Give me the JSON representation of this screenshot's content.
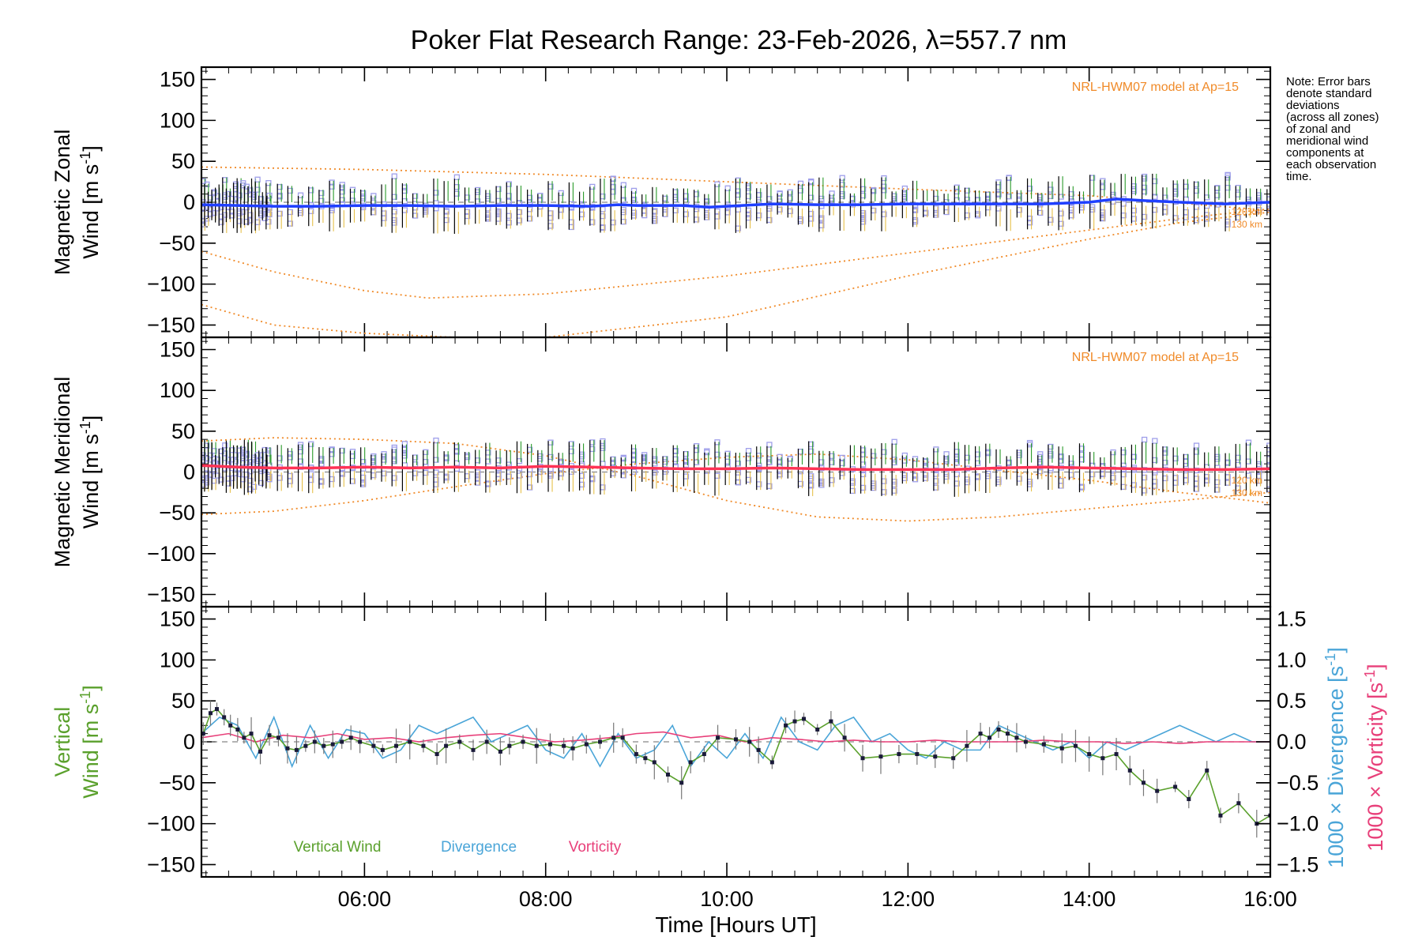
{
  "title": "Poker Flat Research Range: 23-Feb-2026, λ=557.7 nm",
  "note": [
    "Note: Error bars",
    "denote standard",
    "deviations",
    "(across all zones)",
    "of zonal and",
    "meridional wind",
    "components at",
    "each observation",
    "time."
  ],
  "colors": {
    "zonal_mean": "#1f3fff",
    "meridional_mean": "#ff3355",
    "model": "#f08a28",
    "zone_points": "#9f9fea",
    "errbar": "#000000",
    "green_bar": "#2a9a2a",
    "vertical": "#5aa02c",
    "divergence": "#4aa5d8",
    "vorticity": "#e8407a"
  },
  "chart_data": [
    {
      "type": "line",
      "panel": "zonal",
      "ylabel": [
        "Magnetic Zonal",
        "Wind [m s⁻¹]"
      ],
      "ylabel_lines": [
        "Magnetic Zonal",
        "Wind",
        "[m s",
        "-1",
        "]"
      ],
      "ylim": [
        -165,
        165
      ],
      "xlim": [
        4.2,
        16.0
      ],
      "yticks": [
        150,
        100,
        50,
        0,
        -50,
        -100,
        -150
      ],
      "ytick_labels": [
        "150",
        "100",
        "50",
        "0",
        "−50",
        "−100",
        "−150"
      ],
      "model_label": "NRL-HWM07 model at Ap=15",
      "model_alt_labels": [
        "120 km",
        "130 km"
      ],
      "series": [
        {
          "name": "mean zonal wind",
          "x": [
            4.2,
            4.6,
            5.0,
            5.5,
            6.0,
            6.5,
            7.0,
            7.5,
            8.0,
            8.5,
            8.8,
            9.0,
            9.5,
            9.8,
            10.0,
            10.5,
            11.0,
            11.5,
            12.0,
            12.5,
            13.0,
            13.5,
            14.0,
            14.3,
            14.6,
            15.0,
            15.5,
            16.0
          ],
          "values": [
            -3,
            -4,
            -5,
            -5,
            -4,
            -4,
            -5,
            -4,
            -4,
            -5,
            -3,
            -4,
            -4,
            -6,
            -5,
            -2,
            -3,
            -3,
            -2,
            -2,
            -2,
            -2,
            0,
            4,
            2,
            0,
            -2,
            0
          ]
        },
        {
          "name": "HWM07 120 km upper",
          "x": [
            4.2,
            6,
            8,
            10,
            12,
            14,
            15,
            16
          ],
          "values": [
            43,
            40,
            34,
            25,
            16,
            8,
            -1,
            -10
          ]
        },
        {
          "name": "HWM07 130 km",
          "x": [
            4.2,
            5,
            6,
            6.7,
            8,
            10,
            12,
            14,
            15,
            16
          ],
          "values": [
            -60,
            -85,
            -108,
            -117,
            -112,
            -90,
            -62,
            -34,
            -20,
            -8
          ]
        },
        {
          "name": "HWM07 120 km lower",
          "x": [
            4.2,
            5,
            6,
            7,
            8,
            10,
            12,
            14,
            15,
            16
          ],
          "values": [
            -125,
            -150,
            -160,
            -165,
            -165,
            -140,
            -90,
            -45,
            -25,
            -12
          ]
        }
      ]
    },
    {
      "type": "line",
      "panel": "meridional",
      "ylabel": [
        "Magnetic Meridional",
        "Wind [m s⁻¹]"
      ],
      "ylabel_lines": [
        "Magnetic Meridional",
        "Wind",
        "[m s",
        "-1",
        "]"
      ],
      "ylim": [
        -165,
        165
      ],
      "xlim": [
        4.2,
        16.0
      ],
      "yticks": [
        150,
        100,
        50,
        0,
        -50,
        -100,
        -150
      ],
      "ytick_labels": [
        "150",
        "100",
        "50",
        "0",
        "−50",
        "−100",
        "−150"
      ],
      "model_label": "NRL-HWM07 model at Ap=15",
      "model_alt_labels": [
        "120 km",
        "130 km"
      ],
      "series": [
        {
          "name": "mean meridional wind",
          "x": [
            4.2,
            4.6,
            5.0,
            5.5,
            6.0,
            6.5,
            7.0,
            7.5,
            8.0,
            8.5,
            9.0,
            9.5,
            10.0,
            10.5,
            11.0,
            11.5,
            12.0,
            12.5,
            13.0,
            13.5,
            14.0,
            14.5,
            15.0,
            15.5,
            16.0
          ],
          "values": [
            8,
            6,
            5,
            5,
            6,
            5,
            6,
            5,
            7,
            6,
            5,
            4,
            4,
            5,
            4,
            3,
            3,
            3,
            5,
            6,
            5,
            4,
            3,
            3,
            4
          ]
        },
        {
          "name": "HWM07 130 km",
          "x": [
            4.2,
            5,
            6,
            7,
            8,
            9,
            10,
            11,
            12,
            13,
            14,
            15,
            16
          ],
          "values": [
            -52,
            -48,
            -35,
            -18,
            -2,
            10,
            18,
            22,
            15,
            2,
            -10,
            -25,
            -38
          ]
        },
        {
          "name": "HWM07 120 km",
          "x": [
            4.2,
            5,
            6,
            7,
            8,
            9,
            10,
            11,
            12,
            13,
            14,
            15,
            16
          ],
          "values": [
            38,
            42,
            40,
            35,
            20,
            -5,
            -35,
            -55,
            -60,
            -55,
            -45,
            -35,
            -25
          ]
        }
      ]
    },
    {
      "type": "line",
      "panel": "vertical",
      "ylabel": [
        "Vertical",
        "Wind [m s⁻¹]"
      ],
      "ylabel_lines": [
        "Vertical",
        "Wind",
        "[m s",
        "-1",
        "]"
      ],
      "ylabel_right1": "1000 × Divergence [s⁻¹]",
      "ylabel_right1_parts": [
        "1000 × Divergence",
        "[s",
        "-1",
        "]"
      ],
      "ylabel_right2": "1000 × Vorticity [s⁻¹]",
      "ylabel_right2_parts": [
        "1000 × Vorticity",
        "[s",
        "-1",
        "]"
      ],
      "ylim": [
        -165,
        165
      ],
      "ylim_right": [
        -1.65,
        1.65
      ],
      "xlim": [
        4.2,
        16.0
      ],
      "yticks": [
        150,
        100,
        50,
        0,
        -50,
        -100,
        -150
      ],
      "ytick_labels": [
        "150",
        "100",
        "50",
        "0",
        "−50",
        "−100",
        "−150"
      ],
      "yticks_right": [
        1.5,
        1.0,
        0.5,
        0.0,
        -0.5,
        -1.0,
        -1.5
      ],
      "ytick_right_labels": [
        "1.5",
        "1.0",
        "0.5",
        "0.0",
        "−0.5",
        "−1.0",
        "−1.5"
      ],
      "xlabel": "Time [Hours UT]",
      "xticks": [
        6,
        8,
        10,
        12,
        14,
        16
      ],
      "xtick_labels": [
        "06:00",
        "08:00",
        "10:00",
        "12:00",
        "14:00",
        "16:00"
      ],
      "legend": [
        "Vertical Wind",
        "Divergence",
        "Vorticity"
      ],
      "series": [
        {
          "name": "Vertical Wind",
          "x": [
            4.22,
            4.3,
            4.37,
            4.45,
            4.52,
            4.6,
            4.67,
            4.75,
            4.85,
            4.95,
            5.05,
            5.15,
            5.25,
            5.35,
            5.45,
            5.55,
            5.65,
            5.75,
            5.85,
            5.95,
            6.1,
            6.2,
            6.35,
            6.5,
            6.65,
            6.8,
            6.9,
            7.05,
            7.2,
            7.35,
            7.5,
            7.6,
            7.75,
            7.9,
            8.05,
            8.2,
            8.3,
            8.45,
            8.6,
            8.75,
            8.85,
            9.0,
            9.1,
            9.2,
            9.35,
            9.5,
            9.6,
            9.75,
            9.9,
            10.1,
            10.25,
            10.35,
            10.5,
            10.65,
            10.75,
            10.85,
            11.0,
            11.15,
            11.3,
            11.5,
            11.7,
            11.9,
            12.1,
            12.3,
            12.5,
            12.65,
            12.8,
            12.9,
            13.0,
            13.1,
            13.2,
            13.3,
            13.5,
            13.7,
            13.85,
            14.0,
            14.15,
            14.3,
            14.45,
            14.6,
            14.75,
            14.95,
            15.1,
            15.3,
            15.45,
            15.65,
            15.85,
            16.0
          ],
          "values": [
            10,
            35,
            40,
            30,
            20,
            15,
            5,
            10,
            -12,
            8,
            5,
            -8,
            -10,
            -5,
            0,
            -5,
            -3,
            0,
            5,
            0,
            -5,
            -10,
            -5,
            0,
            -5,
            -15,
            -5,
            0,
            -10,
            0,
            -12,
            -5,
            0,
            -5,
            -3,
            -5,
            -8,
            -3,
            0,
            5,
            5,
            -15,
            -20,
            -25,
            -40,
            -50,
            -25,
            -15,
            5,
            3,
            0,
            -10,
            -25,
            20,
            25,
            28,
            15,
            25,
            5,
            -20,
            -18,
            -15,
            -15,
            -18,
            -20,
            -5,
            10,
            5,
            15,
            10,
            5,
            0,
            -3,
            -8,
            -5,
            -15,
            -20,
            -15,
            -35,
            -50,
            -60,
            -55,
            -70,
            -35,
            -90,
            -75,
            -100,
            -90
          ]
        },
        {
          "name": "Divergence",
          "x": [
            4.2,
            4.4,
            4.6,
            4.8,
            5.0,
            5.2,
            5.4,
            5.6,
            5.8,
            6.0,
            6.2,
            6.4,
            6.6,
            6.8,
            7.0,
            7.2,
            7.4,
            7.6,
            7.8,
            8.0,
            8.2,
            8.4,
            8.6,
            8.8,
            9.0,
            9.2,
            9.4,
            9.6,
            9.8,
            10.0,
            10.2,
            10.4,
            10.6,
            10.8,
            11.0,
            11.2,
            11.4,
            11.6,
            11.8,
            12.0,
            12.2,
            12.4,
            12.6,
            12.8,
            13.0,
            13.2,
            13.4,
            13.6,
            13.8,
            14.0,
            14.2,
            14.4,
            14.6,
            14.8,
            15.0,
            15.2,
            15.4,
            15.6,
            15.8,
            16.0
          ],
          "values": [
            0.1,
            0.3,
            0.2,
            -0.2,
            0.3,
            -0.3,
            0.2,
            -0.2,
            0.15,
            0.1,
            -0.2,
            -0.1,
            0.2,
            0.1,
            0.2,
            0.3,
            0.0,
            0.1,
            0.2,
            -0.1,
            -0.2,
            0.1,
            -0.3,
            0.1,
            -0.2,
            -0.1,
            0.2,
            -0.3,
            0.0,
            -0.2,
            0.1,
            -0.2,
            0.3,
            0.0,
            -0.1,
            0.2,
            0.3,
            0.0,
            0.1,
            -0.1,
            -0.2,
            0.0,
            -0.1,
            -0.1,
            0.2,
            0.1,
            0.0,
            -0.1,
            0.0,
            -0.2,
            0.0,
            -0.1,
            0.0,
            0.1,
            0.2,
            0.1,
            0.0,
            0.1,
            0.0,
            0.0
          ]
        },
        {
          "name": "Vorticity",
          "x": [
            4.2,
            4.5,
            4.8,
            5.1,
            5.4,
            5.7,
            6.0,
            6.3,
            6.6,
            6.9,
            7.2,
            7.5,
            7.8,
            8.1,
            8.4,
            8.7,
            9.0,
            9.3,
            9.6,
            9.9,
            10.2,
            10.5,
            10.8,
            11.1,
            11.4,
            11.7,
            12.0,
            12.3,
            12.6,
            12.9,
            13.2,
            13.5,
            13.8,
            14.1,
            14.4,
            14.7,
            15.0,
            15.3,
            15.6,
            16.0
          ],
          "values": [
            0.05,
            0.1,
            0.0,
            0.08,
            0.05,
            0.1,
            0.03,
            0.05,
            0.0,
            0.05,
            0.08,
            0.1,
            0.05,
            0.0,
            0.02,
            0.05,
            0.1,
            0.12,
            0.05,
            0.08,
            0.0,
            0.05,
            0.03,
            0.0,
            0.02,
            0.0,
            0.0,
            0.02,
            0.0,
            0.0,
            0.0,
            0.02,
            0.0,
            0.0,
            -0.02,
            0.0,
            -0.02,
            0.0,
            0.0,
            0.0
          ]
        }
      ]
    }
  ]
}
